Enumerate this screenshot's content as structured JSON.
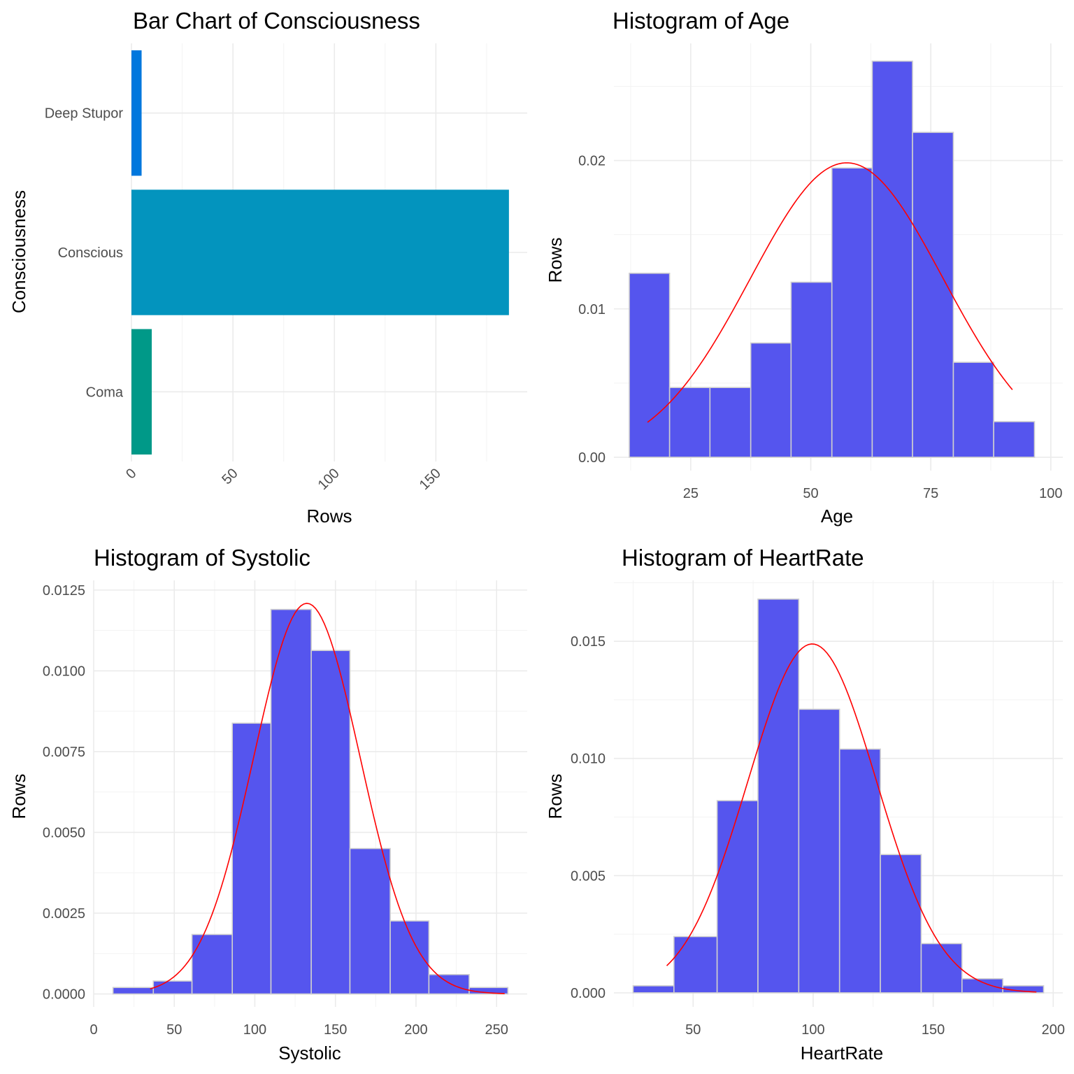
{
  "colors": {
    "bar_fill": "#5555ee",
    "bar_outline": "#cfcfcf",
    "density_line": "#ff0000",
    "grid": "#ebebeb",
    "tick_text": "#4d4d4d"
  },
  "chart_data": [
    {
      "type": "bar",
      "orientation": "horizontal",
      "title": "Bar Chart of Consciousness",
      "xlabel": "Rows",
      "ylabel": "Consciousness",
      "categories": [
        "Coma",
        "Conscious",
        "Deep Stupor"
      ],
      "values": [
        10,
        186,
        5
      ],
      "bar_colors": [
        "#009988",
        "#0394be",
        "#0077dd"
      ],
      "xlim": [
        0,
        195
      ],
      "xticks": [
        "0",
        "50",
        "100",
        "150"
      ],
      "xtick_values": [
        0,
        50,
        100,
        150
      ],
      "xtick_rotation": "45deg",
      "grid": true,
      "legend": "none"
    },
    {
      "type": "histogram",
      "title": "Histogram of Age",
      "xlabel": "Age",
      "ylabel": "Rows",
      "bins": [
        {
          "x0": 12.2,
          "x1": 20.6,
          "density": 0.0124
        },
        {
          "x0": 20.6,
          "x1": 29.0,
          "density": 0.0047
        },
        {
          "x0": 29.0,
          "x1": 37.5,
          "density": 0.0047
        },
        {
          "x0": 37.5,
          "x1": 45.9,
          "density": 0.0077
        },
        {
          "x0": 45.9,
          "x1": 54.4,
          "density": 0.0118
        },
        {
          "x0": 54.4,
          "x1": 62.8,
          "density": 0.0195
        },
        {
          "x0": 62.8,
          "x1": 71.2,
          "density": 0.0267
        },
        {
          "x0": 71.2,
          "x1": 79.7,
          "density": 0.0219
        },
        {
          "x0": 79.7,
          "x1": 88.1,
          "density": 0.0064
        },
        {
          "x0": 88.1,
          "x1": 96.6,
          "density": 0.0024
        }
      ],
      "density_curve": {
        "mean": 57.5,
        "sd": 20.1,
        "from": 16,
        "to": 92
      },
      "xlim": [
        9,
        102.5
      ],
      "ylim": [
        -0.0009,
        0.0279
      ],
      "xticks": [
        "25",
        "50",
        "75",
        "100"
      ],
      "xtick_values": [
        25,
        50,
        75,
        100
      ],
      "yticks": [
        "0.00",
        "0.01",
        "0.02"
      ],
      "ytick_values": [
        0,
        0.01,
        0.02
      ],
      "grid": true,
      "legend": "none"
    },
    {
      "type": "histogram",
      "title": "Histogram of Systolic",
      "xlabel": "Systolic",
      "ylabel": "Rows",
      "bins": [
        {
          "x0": 12,
          "x1": 37,
          "density": 0.0002
        },
        {
          "x0": 37,
          "x1": 61,
          "density": 0.0004
        },
        {
          "x0": 61,
          "x1": 86,
          "density": 0.00184
        },
        {
          "x0": 86,
          "x1": 110,
          "density": 0.00838
        },
        {
          "x0": 110,
          "x1": 135,
          "density": 0.0119
        },
        {
          "x0": 135,
          "x1": 159,
          "density": 0.01063
        },
        {
          "x0": 159,
          "x1": 184,
          "density": 0.0045
        },
        {
          "x0": 184,
          "x1": 208,
          "density": 0.00226
        },
        {
          "x0": 208,
          "x1": 233,
          "density": 0.0006
        },
        {
          "x0": 233,
          "x1": 257,
          "density": 0.0002
        }
      ],
      "density_curve": {
        "mean": 132.3,
        "sd": 33.0,
        "from": 35,
        "to": 255
      },
      "xlim": [
        0,
        269
      ],
      "ylim": [
        -0.0004,
        0.0128
      ],
      "xticks": [
        "0",
        "50",
        "100",
        "150",
        "200",
        "250"
      ],
      "xtick_values": [
        0,
        50,
        100,
        150,
        200,
        250
      ],
      "yticks": [
        "0.0000",
        "0.0025",
        "0.0050",
        "0.0075",
        "0.0100",
        "0.0125"
      ],
      "ytick_values": [
        0,
        0.0025,
        0.005,
        0.0075,
        0.01,
        0.0125
      ],
      "grid": true,
      "legend": "none"
    },
    {
      "type": "histogram",
      "title": "Histogram of HeartRate",
      "xlabel": "HeartRate",
      "ylabel": "Rows",
      "bins": [
        {
          "x0": 25,
          "x1": 42,
          "density": 0.0003
        },
        {
          "x0": 42,
          "x1": 60,
          "density": 0.0024
        },
        {
          "x0": 60,
          "x1": 77,
          "density": 0.0082
        },
        {
          "x0": 77,
          "x1": 94,
          "density": 0.0168
        },
        {
          "x0": 94,
          "x1": 111,
          "density": 0.0121
        },
        {
          "x0": 111,
          "x1": 128,
          "density": 0.0104
        },
        {
          "x0": 128,
          "x1": 145,
          "density": 0.0059
        },
        {
          "x0": 145,
          "x1": 162,
          "density": 0.0021
        },
        {
          "x0": 162,
          "x1": 179,
          "density": 0.0006
        },
        {
          "x0": 179,
          "x1": 196,
          "density": 0.0003
        }
      ],
      "density_curve": {
        "mean": 99.6,
        "sd": 26.8,
        "from": 39,
        "to": 193
      },
      "xlim": [
        17,
        204
      ],
      "ylim": [
        -0.0006,
        0.0176
      ],
      "xticks": [
        "50",
        "100",
        "150",
        "200"
      ],
      "xtick_values": [
        50,
        100,
        150,
        200
      ],
      "yticks": [
        "0.000",
        "0.005",
        "0.010",
        "0.015"
      ],
      "ytick_values": [
        0,
        0.005,
        0.01,
        0.015
      ],
      "grid": true,
      "legend": "none"
    }
  ]
}
